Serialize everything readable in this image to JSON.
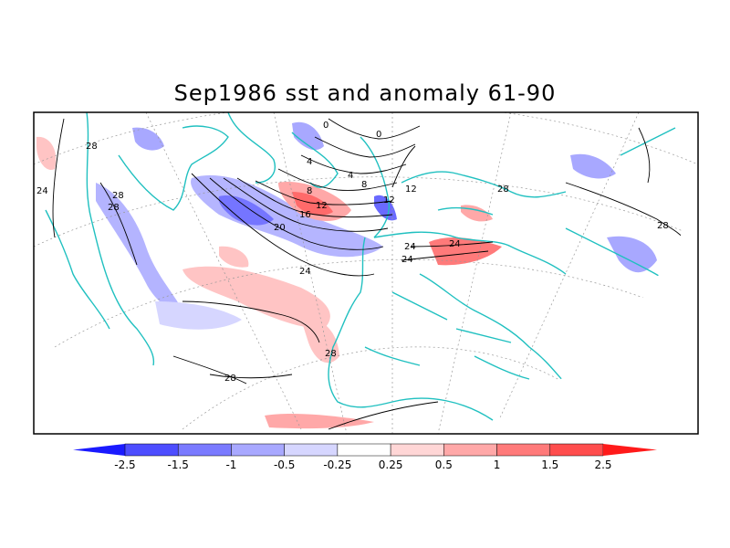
{
  "title": "Sep1986 sst and anomaly 61-90",
  "colorbar": {
    "bins": [
      {
        "color": "#1a1aff"
      },
      {
        "color": "#4d4dff"
      },
      {
        "color": "#7a7aff"
      },
      {
        "color": "#a8a8ff"
      },
      {
        "color": "#d6d6ff"
      },
      {
        "color": "#ffffff"
      },
      {
        "color": "#ffd6d6"
      },
      {
        "color": "#ffa8a8"
      },
      {
        "color": "#ff7a7a"
      },
      {
        "color": "#ff4d4d"
      },
      {
        "color": "#ff1a1a"
      }
    ],
    "labels": [
      "-2.5",
      "-1.5",
      "-1",
      "-0.5",
      "-0.25",
      "0.25",
      "0.5",
      "1",
      "1.5",
      "2.5"
    ]
  },
  "contour_labels": [
    "28",
    "24",
    "28",
    "28",
    "24",
    "28",
    "28",
    "20",
    "16",
    "12",
    "8",
    "4",
    "0",
    "0",
    "4",
    "8",
    "12",
    "12",
    "24",
    "24",
    "24",
    "28",
    "28"
  ],
  "colors": {
    "coast": "#20c0c0",
    "contour": "#000000",
    "frame": "#000000"
  }
}
